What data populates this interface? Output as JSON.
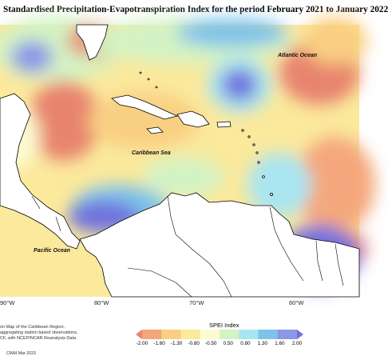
{
  "title": "Standardised Precipitation-Evapotranspiration Index for the period February 2021 to January 2022",
  "map": {
    "sea_labels": [
      "Atlantic Ocean",
      "Caribbean Sea",
      "Pacific Ocean"
    ],
    "longitude_labels": [
      "90°W",
      "80°W",
      "70°W",
      "60°W"
    ]
  },
  "legend": {
    "title": "SPEI Index",
    "ticks": [
      "-2.00",
      "-1.60",
      "-1.30",
      "-0.80",
      "-0.50",
      "0.50",
      "0.80",
      "1.30",
      "1.60",
      "2.00"
    ],
    "colors": [
      "#e8846e",
      "#f4a77b",
      "#f9cf82",
      "#fbe99c",
      "#fdfbd0",
      "#d3f3c4",
      "#a9e5f1",
      "#7ec3ea",
      "#8c97e6",
      "#6f71dd"
    ]
  },
  "notes": {
    "line1": "on Map of the Caribbean Region.",
    "line2": "aggregating station based observations,",
    "line3": "CF, with NCEP/NCAR Reanalysis Data.",
    "credit": "CIMH Mar-2023"
  }
}
